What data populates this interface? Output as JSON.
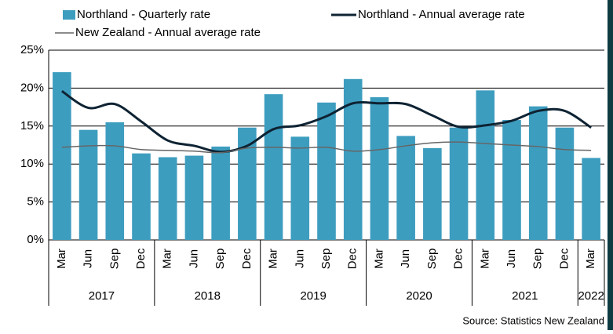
{
  "chart_data": {
    "type": "bar_line",
    "categories": [
      "Mar",
      "Jun",
      "Sep",
      "Dec",
      "Mar",
      "Jun",
      "Sep",
      "Dec",
      "Mar",
      "Jun",
      "Sep",
      "Dec",
      "Mar",
      "Jun",
      "Sep",
      "Dec",
      "Mar",
      "Jun",
      "Sep",
      "Dec",
      "Mar"
    ],
    "category_groups": [
      "2017",
      "2018",
      "2019",
      "2020",
      "2021",
      "2022"
    ],
    "series": [
      {
        "name": "Northland - Quarterly rate",
        "kind": "bar",
        "color": "#3d9dbf",
        "values": [
          22.1,
          14.5,
          15.5,
          11.4,
          10.9,
          11.1,
          12.3,
          14.8,
          19.2,
          13.6,
          18.1,
          21.2,
          18.8,
          13.7,
          12.1,
          14.8,
          19.7,
          15.8,
          17.6,
          14.8,
          10.8
        ]
      },
      {
        "name": "Northland - Annual average rate",
        "kind": "line",
        "color": "#0e2333",
        "values": [
          19.6,
          17.4,
          17.9,
          15.6,
          13.1,
          12.4,
          11.6,
          12.4,
          14.6,
          15.1,
          16.3,
          18.0,
          18.0,
          17.9,
          16.4,
          14.9,
          15.1,
          15.7,
          17.0,
          17.0,
          14.8
        ]
      },
      {
        "name": "New Zealand - Annual average rate",
        "kind": "line",
        "color": "#666666",
        "values": [
          12.2,
          12.4,
          12.4,
          11.9,
          11.8,
          11.7,
          11.5,
          12.1,
          12.2,
          12.1,
          12.2,
          11.7,
          11.9,
          12.4,
          12.8,
          12.9,
          12.7,
          12.5,
          12.3,
          11.9,
          11.8
        ]
      }
    ],
    "ylim": [
      0,
      25
    ],
    "yticks": [
      {
        "value": 0,
        "label": "0%"
      },
      {
        "value": 5,
        "label": "5%"
      },
      {
        "value": 10,
        "label": "10%"
      },
      {
        "value": 15,
        "label": "15%"
      },
      {
        "value": 20,
        "label": "20%"
      },
      {
        "value": 25,
        "label": "25%"
      }
    ],
    "grid": true,
    "source": "Source: Statistics New Zealand"
  }
}
